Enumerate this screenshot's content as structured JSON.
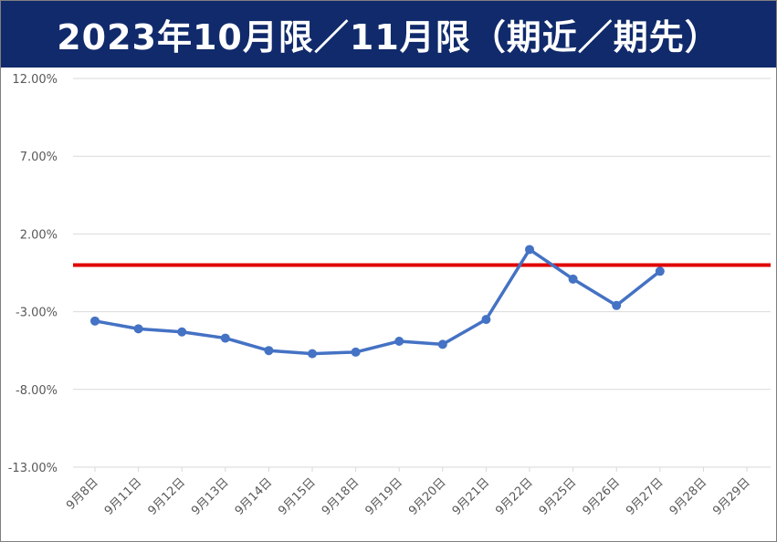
{
  "chart_data": {
    "type": "line",
    "title": "2023年10月限／11月限（期近／期先）",
    "y_ticks": [
      "12.00%",
      "7.00%",
      "2.00%",
      "-3.00%",
      "-8.00%",
      "-13.00%"
    ],
    "ylim": [
      -13,
      12
    ],
    "grid": true,
    "categories": [
      "9月8日",
      "9月11日",
      "9月12日",
      "9月13日",
      "9月14日",
      "9月15日",
      "9月18日",
      "9月19日",
      "9月20日",
      "9月21日",
      "9月22日",
      "9月25日",
      "9月26日",
      "9月27日",
      "9月28日",
      "9月29日"
    ],
    "series": [
      {
        "color": "#4472c4",
        "values": [
          -3.6,
          -4.1,
          -4.3,
          -4.7,
          -5.5,
          -5.7,
          -5.6,
          -4.9,
          -5.1,
          -3.5,
          1.0,
          -0.9,
          -2.6,
          -0.4,
          null,
          null
        ]
      }
    ],
    "reference_line": {
      "value": 0,
      "color": "#e00000"
    }
  }
}
